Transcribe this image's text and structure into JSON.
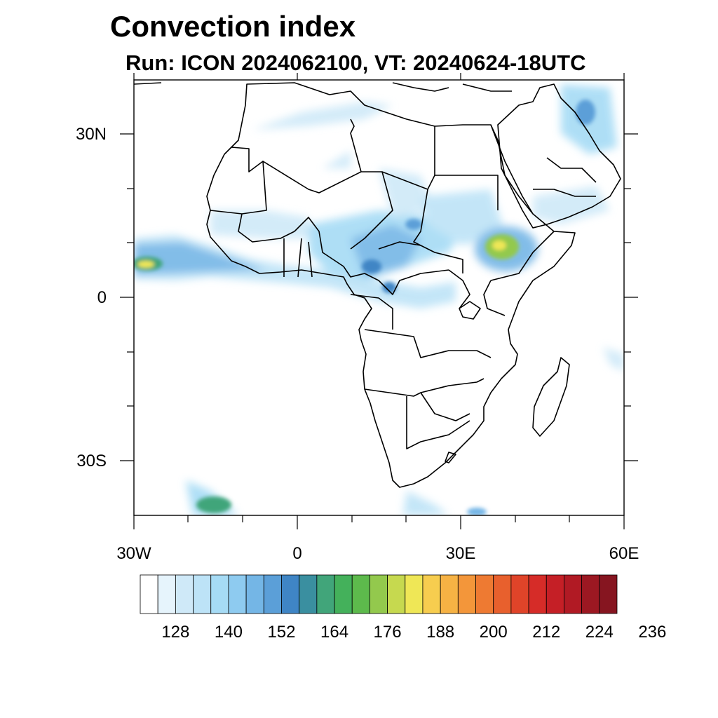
{
  "title": "Convection index",
  "subtitle": "Run: ICON 2024062100,  VT: 20240624-18UTC",
  "map": {
    "projection": "lat-lon",
    "lon_range": [
      -30,
      60
    ],
    "lat_range": [
      -40,
      40
    ],
    "x_tick_labels": [
      "30W",
      "0",
      "30E",
      "60E"
    ],
    "y_tick_labels": [
      "30N",
      "0",
      "30S"
    ],
    "region": "Africa and Arabian Peninsula",
    "features": [
      "coastlines",
      "country borders"
    ]
  },
  "colorbar": {
    "labels": [
      "128",
      "140",
      "152",
      "164",
      "176",
      "188",
      "200",
      "212",
      "224",
      "236"
    ],
    "colors": [
      "#ffffff",
      "#e6f4fc",
      "#cfe9f8",
      "#bde3f7",
      "#a6dbf5",
      "#8ecbf0",
      "#74b6e6",
      "#5b9fd8",
      "#3f85c5",
      "#3a8fa0",
      "#41a57a",
      "#44b15b",
      "#5dba4c",
      "#93c94d",
      "#c6d94f",
      "#efe756",
      "#f7cd4f",
      "#f6b244",
      "#f3963a",
      "#ee7a32",
      "#e8602d",
      "#e04429",
      "#d62c28",
      "#c51f26",
      "#b11a24",
      "#9c1822",
      "#861520"
    ]
  }
}
